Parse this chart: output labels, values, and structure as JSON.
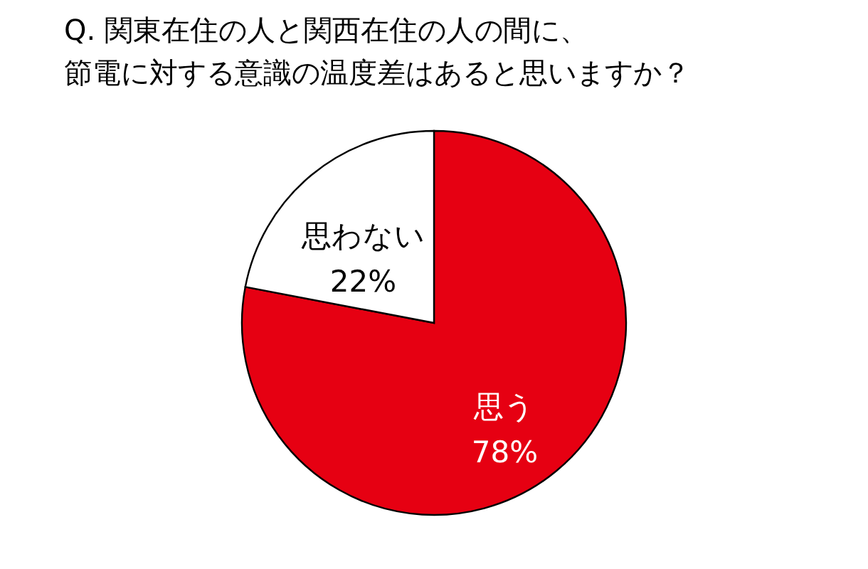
{
  "chart_data": {
    "type": "pie",
    "title": "Q. 関東在住の人と関西在住の人の間に、",
    "subtitle": "節電に対する意識の温度差はあると思いますか？",
    "categories": [
      "思う",
      "思わない"
    ],
    "values": [
      78,
      22
    ],
    "colors": [
      "#e60012",
      "#ffffff"
    ],
    "value_labels": [
      "78%",
      "22%"
    ],
    "legend": false
  }
}
